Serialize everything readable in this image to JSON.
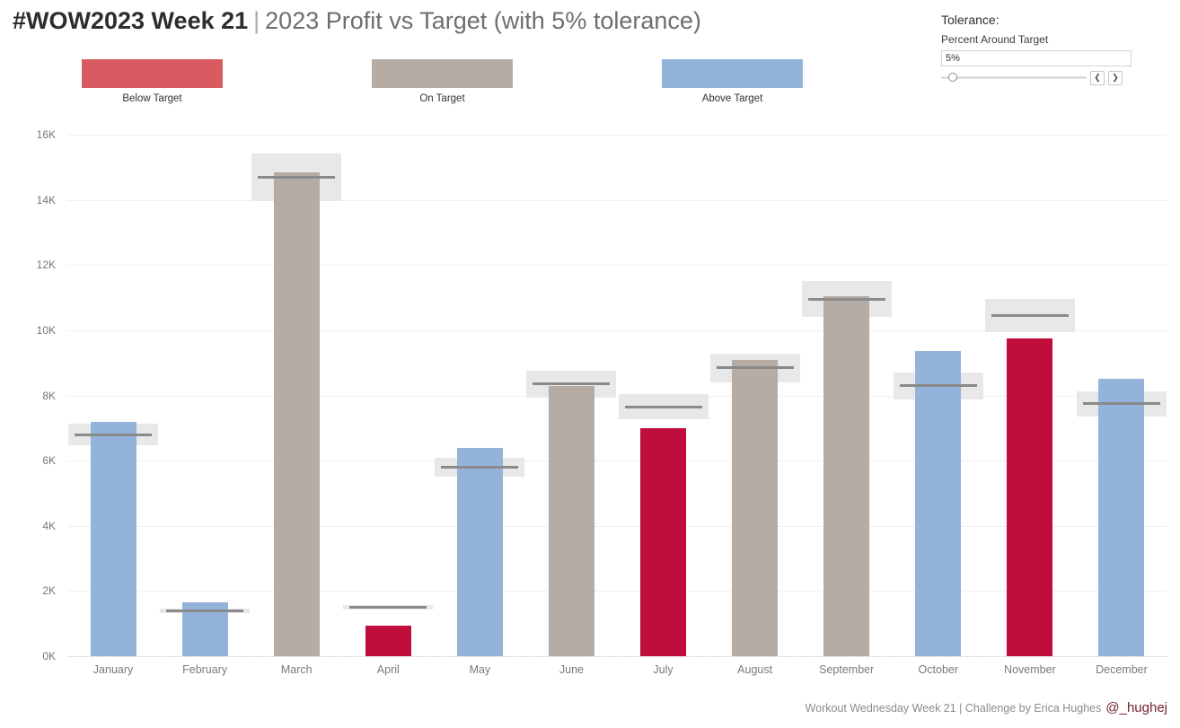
{
  "title": {
    "bold": "#WOW2023 Week 21",
    "separator": "|",
    "regular": "2023 Profit vs Target (with 5% tolerance)"
  },
  "tolerance_control": {
    "label": "Tolerance:",
    "sublabel": "Percent Around Target",
    "value": "5%",
    "decrement_icon": "❮",
    "increment_icon": "❯"
  },
  "legend": {
    "items": [
      {
        "label": "Below Target",
        "color": "#d95a60"
      },
      {
        "label": "On Target",
        "color": "#b4aca5"
      },
      {
        "label": "Above Target",
        "color": "#94b3db"
      }
    ]
  },
  "footer": {
    "text": "Workout Wednesday Week 21 | Challenge by Erica Hughes",
    "handle": "@_hughej"
  },
  "chart_data": {
    "type": "bar",
    "title": "2023 Profit vs Target (with 5% tolerance)",
    "categories": [
      "January",
      "February",
      "March",
      "April",
      "May",
      "June",
      "July",
      "August",
      "September",
      "October",
      "November",
      "December"
    ],
    "series": [
      {
        "name": "Profit",
        "values": [
          7200,
          1650,
          14850,
          950,
          6400,
          8300,
          7000,
          9100,
          11050,
          9350,
          9750,
          8500
        ]
      },
      {
        "name": "Target",
        "values": [
          6800,
          1400,
          14700,
          1500,
          5800,
          8350,
          7650,
          8850,
          10950,
          8300,
          10450,
          7750
        ]
      }
    ],
    "tolerance_pct": 5,
    "xlabel": "",
    "ylabel": "",
    "ylim": [
      0,
      16000
    ],
    "ytick_step": 2000,
    "ytick_suffix": "K",
    "grid": true,
    "legend_position": "top",
    "colors": {
      "below": "#c00e3c",
      "on": "#b4aca5",
      "above": "#94b3db",
      "band": "#e8e8e8",
      "target_line": "#8a8a8a"
    }
  }
}
